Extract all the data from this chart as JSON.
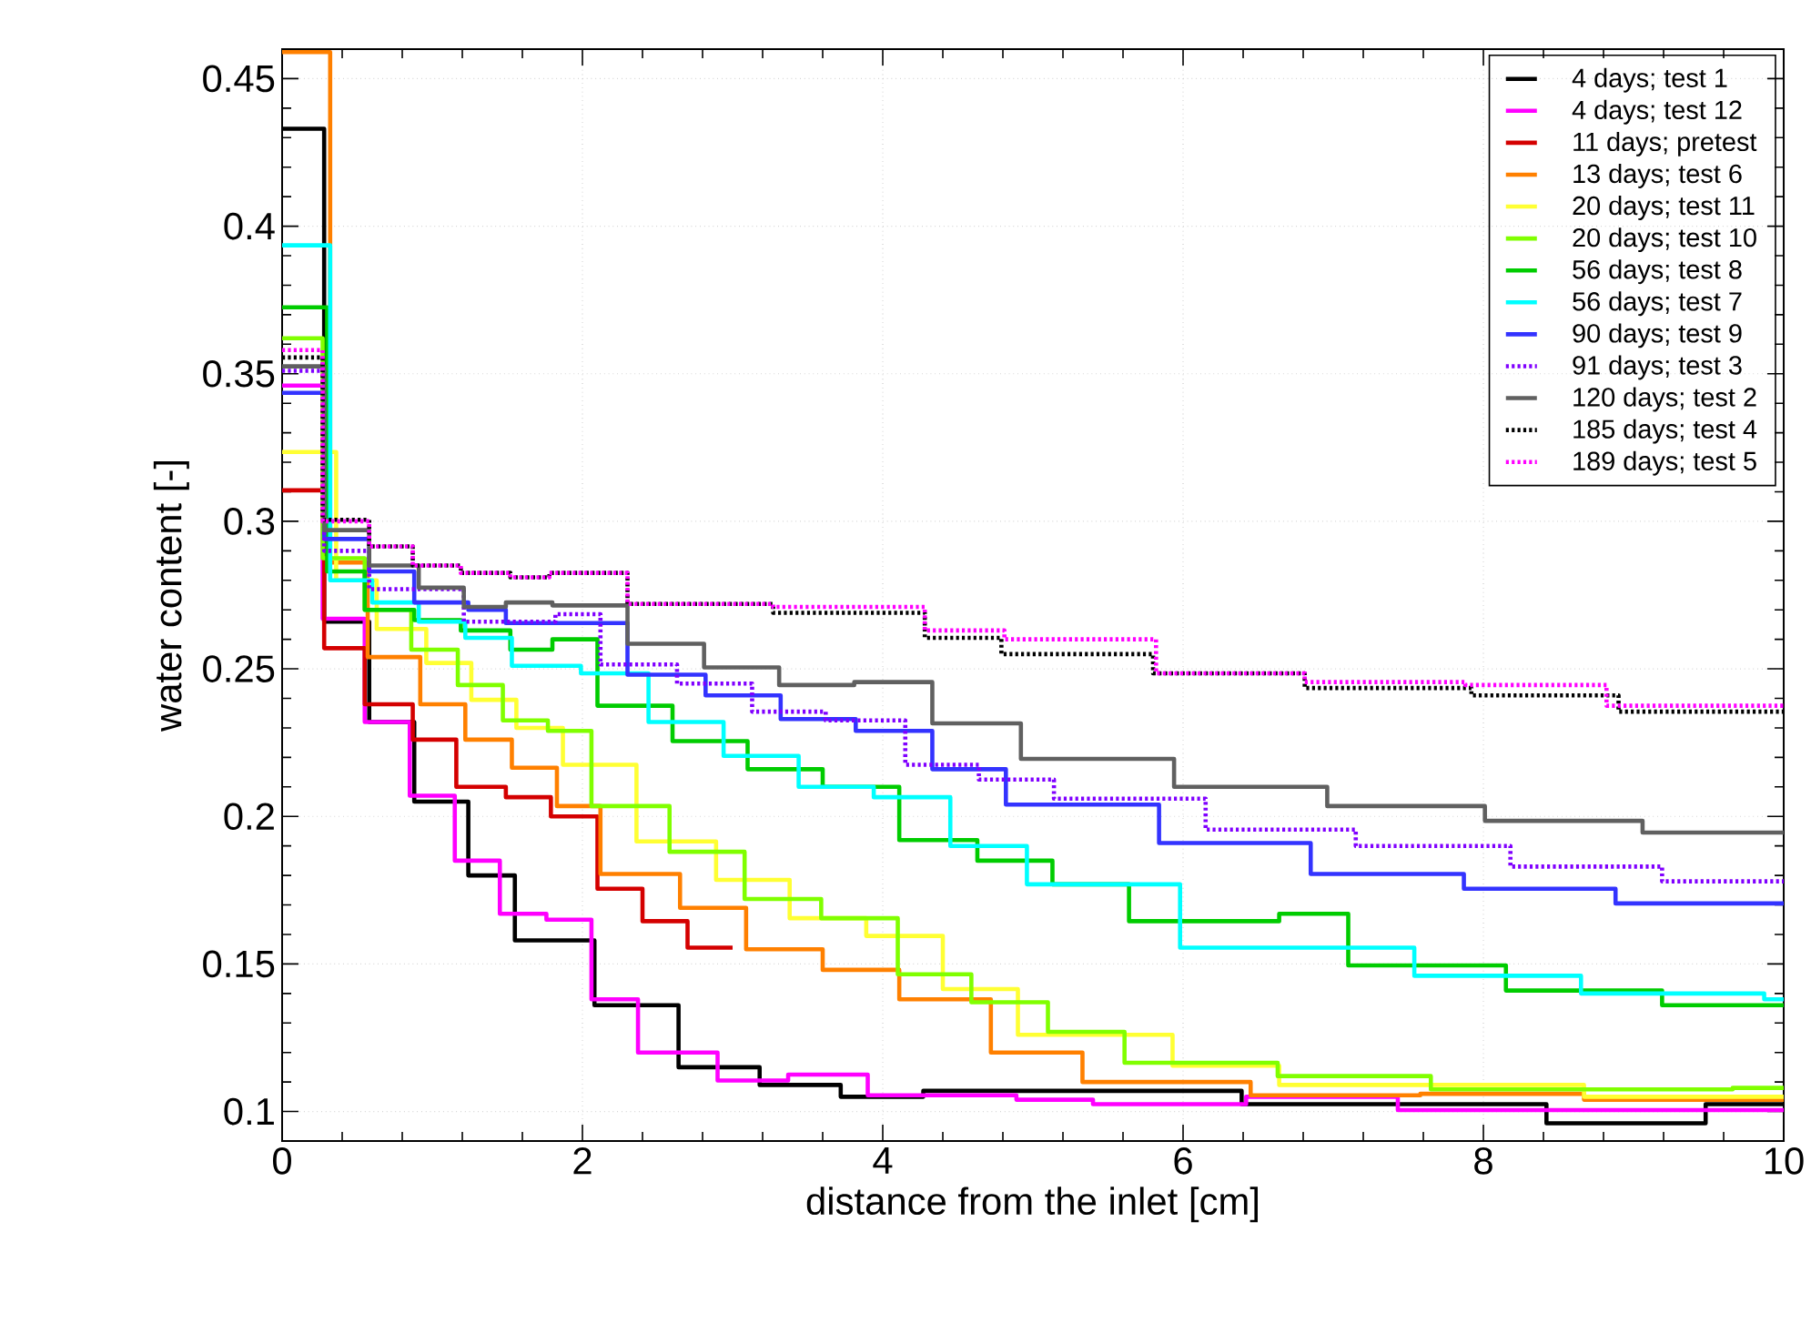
{
  "chart_data": {
    "type": "step",
    "xlabel": "distance from the inlet [cm]",
    "ylabel": "water content [-]",
    "xlim": [
      0,
      10
    ],
    "ylim": [
      0.09,
      0.46
    ],
    "xticks": [
      0,
      2,
      4,
      6,
      8,
      10
    ],
    "yticks": [
      0.1,
      0.15,
      0.2,
      0.25,
      0.3,
      0.35,
      0.4,
      0.45
    ],
    "grid": true,
    "legend": "top right",
    "series": [
      {
        "name": "4 days; test 1",
        "color": "#000000",
        "x": [
          0,
          0.28,
          0.58,
          0.88,
          1.24,
          1.55,
          2.08,
          2.64,
          3.18,
          3.72,
          4.27,
          6.39,
          8.42,
          9.48,
          10
        ],
        "values": [
          0.433,
          0.266,
          0.232,
          0.205,
          0.18,
          0.158,
          0.136,
          0.115,
          0.109,
          0.105,
          0.107,
          0.1025,
          0.096,
          0.1025,
          0.1025
        ]
      },
      {
        "name": "4 days; test 12",
        "color": "#ff00ff",
        "x": [
          0,
          0.27,
          0.55,
          0.85,
          1.15,
          1.45,
          1.76,
          2.06,
          2.37,
          2.9,
          3.37,
          3.9,
          4.89,
          5.4,
          6.42,
          7.43,
          10
        ],
        "values": [
          0.346,
          0.267,
          0.232,
          0.207,
          0.185,
          0.167,
          0.165,
          0.138,
          0.12,
          0.1105,
          0.1125,
          0.1055,
          0.104,
          0.1025,
          0.105,
          0.1005,
          0.1005
        ]
      },
      {
        "name": "11 days; pretest",
        "color": "#d40000",
        "x": [
          0,
          0.28,
          0.55,
          0.87,
          1.16,
          1.49,
          1.79,
          2.1,
          2.4,
          2.7,
          3.0
        ],
        "values": [
          0.3105,
          0.257,
          0.238,
          0.226,
          0.21,
          0.2065,
          0.2,
          0.1755,
          0.1645,
          0.1555,
          0.1555
        ]
      },
      {
        "name": "13 days; test 6",
        "color": "#ff8000",
        "x": [
          0,
          0.32,
          0.57,
          0.92,
          1.22,
          1.53,
          1.83,
          2.12,
          2.65,
          3.09,
          3.6,
          4.11,
          4.72,
          5.33,
          6.45,
          7.58,
          8.67,
          10
        ],
        "values": [
          0.459,
          0.286,
          0.254,
          0.238,
          0.226,
          0.2165,
          0.2035,
          0.1805,
          0.169,
          0.155,
          0.148,
          0.138,
          0.12,
          0.11,
          0.1055,
          0.106,
          0.104,
          0.104
        ]
      },
      {
        "name": "20 days; test 11",
        "color": "#ffff33",
        "x": [
          0,
          0.36,
          0.63,
          0.96,
          1.26,
          1.56,
          1.87,
          2.36,
          2.89,
          3.38,
          3.89,
          4.4,
          4.9,
          5.93,
          6.64,
          8.67,
          10
        ],
        "values": [
          0.3235,
          0.28,
          0.2635,
          0.252,
          0.2395,
          0.23,
          0.2175,
          0.1915,
          0.1785,
          0.1655,
          0.1595,
          0.1415,
          0.126,
          0.1155,
          0.109,
          0.105,
          0.105
        ]
      },
      {
        "name": "20 days; test 10",
        "color": "#80ff00",
        "x": [
          0,
          0.27,
          0.55,
          0.86,
          1.17,
          1.47,
          1.77,
          2.06,
          2.58,
          3.08,
          3.59,
          4.1,
          4.59,
          5.1,
          5.61,
          6.63,
          7.65,
          9.66,
          10
        ],
        "values": [
          0.362,
          0.2875,
          0.27,
          0.2565,
          0.2445,
          0.2325,
          0.229,
          0.2035,
          0.188,
          0.172,
          0.1655,
          0.1465,
          0.137,
          0.127,
          0.1165,
          0.112,
          0.1075,
          0.108,
          0.108
        ]
      },
      {
        "name": "56 days; test 8",
        "color": "#00cc00",
        "x": [
          0,
          0.3,
          0.55,
          0.88,
          1.19,
          1.52,
          1.8,
          2.1,
          2.6,
          3.1,
          3.6,
          4.11,
          4.63,
          5.13,
          5.64,
          6.64,
          7.1,
          8.15,
          9.19,
          10
        ],
        "values": [
          0.3725,
          0.283,
          0.27,
          0.2665,
          0.263,
          0.2565,
          0.26,
          0.2375,
          0.2255,
          0.216,
          0.21,
          0.192,
          0.185,
          0.177,
          0.1645,
          0.167,
          0.1495,
          0.141,
          0.136,
          0.136
        ]
      },
      {
        "name": "56 days; test 7",
        "color": "#00ffff",
        "x": [
          0,
          0.32,
          0.6,
          0.91,
          1.22,
          1.53,
          1.99,
          2.44,
          2.94,
          3.44,
          3.94,
          4.45,
          4.96,
          5.98,
          7.54,
          8.65,
          9.87,
          10
        ],
        "values": [
          0.3935,
          0.28,
          0.2725,
          0.266,
          0.2605,
          0.251,
          0.2485,
          0.232,
          0.2205,
          0.21,
          0.2065,
          0.19,
          0.177,
          0.1555,
          0.146,
          0.14,
          0.138,
          0.138
        ]
      },
      {
        "name": "90 days; test 9",
        "color": "#3333ff",
        "x": [
          0,
          0.28,
          0.58,
          0.88,
          1.24,
          1.49,
          2.3,
          2.82,
          3.32,
          3.82,
          4.33,
          4.82,
          5.84,
          6.85,
          7.87,
          8.88,
          10
        ],
        "values": [
          0.3435,
          0.294,
          0.283,
          0.2725,
          0.27,
          0.2655,
          0.248,
          0.241,
          0.233,
          0.229,
          0.216,
          0.204,
          0.191,
          0.1805,
          0.1755,
          0.1705,
          0.1705
        ]
      },
      {
        "name": "91 days; test 3",
        "color": "#8000ff",
        "line_style": "dotted",
        "x": [
          0,
          0.28,
          0.58,
          1.21,
          1.82,
          2.12,
          2.63,
          3.13,
          3.62,
          4.15,
          4.64,
          5.14,
          6.15,
          7.15,
          8.18,
          9.19,
          10
        ],
        "values": [
          0.351,
          0.29,
          0.277,
          0.266,
          0.2685,
          0.2515,
          0.245,
          0.2355,
          0.2325,
          0.2175,
          0.2125,
          0.206,
          0.1955,
          0.19,
          0.183,
          0.178,
          0.178
        ]
      },
      {
        "name": "120 days; test 2",
        "color": "#606060",
        "x": [
          0,
          0.28,
          0.58,
          0.91,
          1.21,
          1.49,
          1.8,
          2.3,
          2.81,
          3.31,
          3.81,
          4.33,
          4.92,
          5.94,
          6.96,
          8.01,
          9.06,
          10
        ],
        "values": [
          0.3525,
          0.297,
          0.285,
          0.2775,
          0.271,
          0.2725,
          0.2715,
          0.2585,
          0.2505,
          0.2445,
          0.2455,
          0.2315,
          0.2195,
          0.21,
          0.2035,
          0.1985,
          0.1945,
          0.1945
        ]
      },
      {
        "name": "185 days; test 4",
        "color": "#000000",
        "line_style": "dotted",
        "x": [
          0,
          0.27,
          0.58,
          0.87,
          1.19,
          1.52,
          1.78,
          2.3,
          3.27,
          4.28,
          4.79,
          5.8,
          6.81,
          7.92,
          8.9,
          10
        ],
        "values": [
          0.3555,
          0.3005,
          0.2915,
          0.285,
          0.2825,
          0.281,
          0.2825,
          0.272,
          0.269,
          0.2605,
          0.255,
          0.2485,
          0.2435,
          0.241,
          0.2355,
          0.2355
        ]
      },
      {
        "name": "189 days; test 5",
        "color": "#ff00ff",
        "line_style": "dotted",
        "x": [
          0,
          0.27,
          0.58,
          0.87,
          1.19,
          1.52,
          1.78,
          2.3,
          3.27,
          4.28,
          4.81,
          5.82,
          6.81,
          7.88,
          8.82,
          10
        ],
        "values": [
          0.358,
          0.3,
          0.2915,
          0.285,
          0.2825,
          0.281,
          0.2825,
          0.272,
          0.271,
          0.263,
          0.26,
          0.2485,
          0.2455,
          0.2445,
          0.2375,
          0.2375
        ]
      }
    ]
  }
}
